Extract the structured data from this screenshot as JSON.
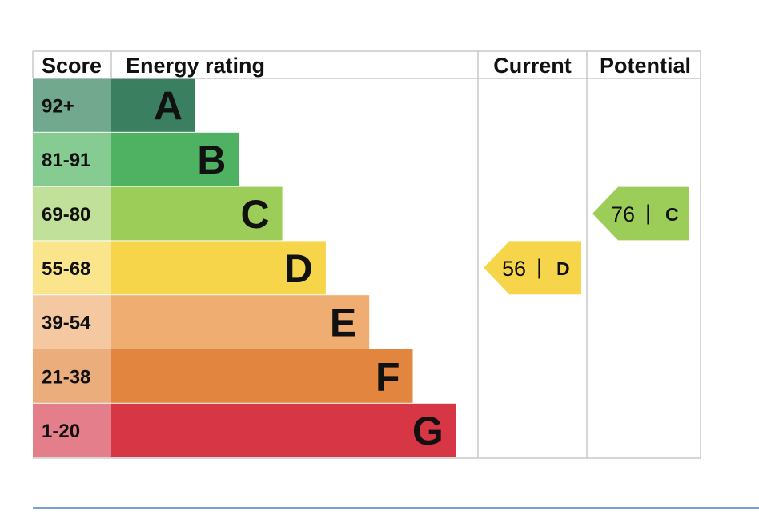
{
  "chart_data": {
    "type": "table",
    "headers": {
      "score": "Score",
      "energy_rating": "Energy rating",
      "current": "Current",
      "potential": "Potential"
    },
    "bands": [
      {
        "letter": "A",
        "score_range": "92+",
        "color": "#3a8060",
        "score_bg": "#72a88e"
      },
      {
        "letter": "B",
        "score_range": "81-91",
        "color": "#4fb262",
        "score_bg": "#86cc92"
      },
      {
        "letter": "C",
        "score_range": "69-80",
        "color": "#9ccd59",
        "score_bg": "#c1e09a"
      },
      {
        "letter": "D",
        "score_range": "55-68",
        "color": "#f6d54b",
        "score_bg": "#fae58c"
      },
      {
        "letter": "E",
        "score_range": "39-54",
        "color": "#efad71",
        "score_bg": "#f4c9a1"
      },
      {
        "letter": "F",
        "score_range": "21-38",
        "color": "#e2863f",
        "score_bg": "#ebad7c"
      },
      {
        "letter": "G",
        "score_range": "1-20",
        "color": "#d73644",
        "score_bg": "#e47e8a"
      }
    ],
    "current": {
      "value": 56,
      "separator": "|",
      "letter": "D",
      "color": "#f6d54b"
    },
    "potential": {
      "value": 76,
      "separator": "|",
      "letter": "C",
      "color": "#9ccd59"
    }
  }
}
